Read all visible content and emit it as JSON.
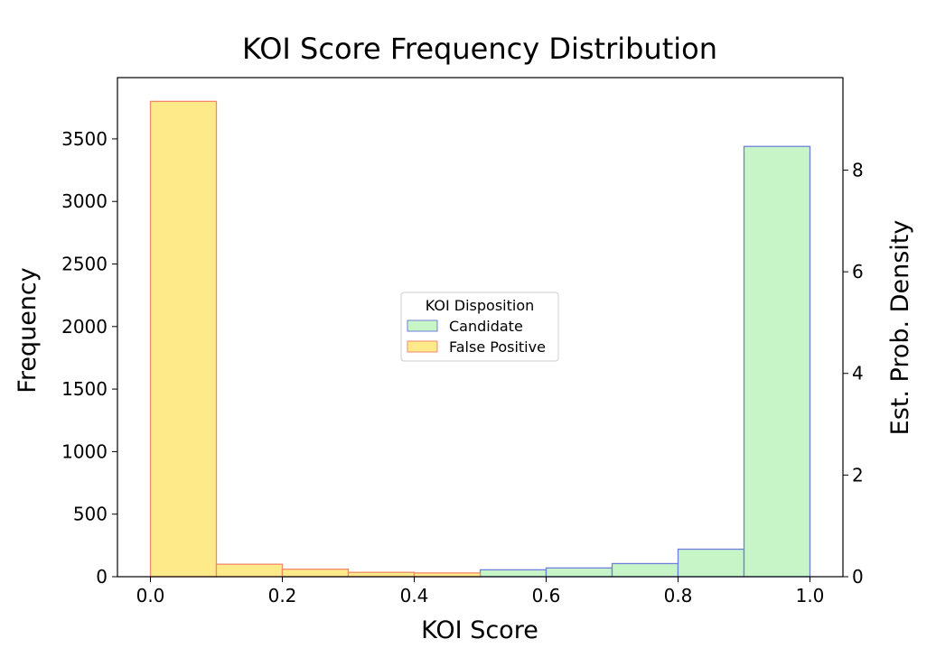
{
  "chart_data": {
    "type": "bar",
    "title": "KOI Score Frequency Distribution",
    "xlabel": "KOI Score",
    "ylabel": "Frequency",
    "y2label": "Est. Prob. Density",
    "xlim": [
      -0.05,
      1.05
    ],
    "ylim": [
      0,
      3990
    ],
    "y2lim": [
      0,
      9.82
    ],
    "xticks": [
      "0.0",
      "0.2",
      "0.4",
      "0.6",
      "0.8",
      "1.0"
    ],
    "yticks": [
      "0",
      "500",
      "1000",
      "1500",
      "2000",
      "2500",
      "3000",
      "3500"
    ],
    "y2ticks": [
      "0",
      "2",
      "4",
      "6",
      "8"
    ],
    "bin_edges": [
      0.0,
      0.1,
      0.2,
      0.3,
      0.4,
      0.5,
      0.6,
      0.7,
      0.8,
      0.9,
      1.0
    ],
    "series": [
      {
        "name": "Candidate",
        "fill": "#c8f5c8",
        "edge": "#6f7fdc",
        "values": [
          0,
          0,
          10,
          20,
          25,
          55,
          70,
          105,
          220,
          3440
        ]
      },
      {
        "name": "False Positive",
        "fill": "#ffea8a",
        "edge": "#f08a6a",
        "values": [
          3800,
          100,
          60,
          35,
          30,
          0,
          0,
          0,
          0,
          0
        ]
      }
    ],
    "legend": {
      "title": "KOI Disposition",
      "position": "center"
    }
  }
}
